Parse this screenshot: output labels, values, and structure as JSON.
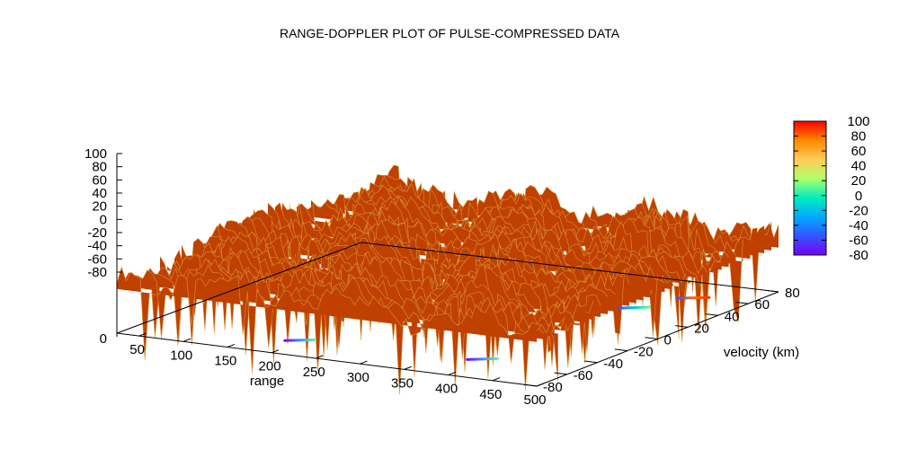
{
  "chart_data": {
    "type": "surface",
    "title": "RANGE-DOPPLER PLOT OF PULSE-COMPRESSED DATA",
    "xlabel": "range",
    "ylabel": "velocity (km)",
    "zlabel": "",
    "x_ticks": [
      "50",
      "100",
      "150",
      "200",
      "250",
      "300",
      "350",
      "400",
      "450",
      "500"
    ],
    "y_ticks": [
      "-80",
      "-60",
      "-40",
      "-20",
      "0",
      "20",
      "40",
      "60",
      "80"
    ],
    "z_ticks": [
      "100",
      "80",
      "60",
      "40",
      "20",
      "0",
      "-20",
      "-40",
      "-60",
      "-80"
    ],
    "z_axis_base_label": "0",
    "colorbar_ticks": [
      "100",
      "80",
      "60",
      "40",
      "20",
      "0",
      "-20",
      "-40",
      "-60",
      "-80"
    ],
    "colorbar_colors": [
      "#ff0000",
      "#ff8800",
      "#ffcc55",
      "#b0ff6a",
      "#00eebb",
      "#00aaff",
      "#3355ff",
      "#7700ff"
    ],
    "surface_color": "#c04000",
    "surface_highlight_color": "#d9a040",
    "xlim": [
      25,
      500
    ],
    "ylim": [
      -80,
      80
    ],
    "zlim": [
      -80,
      100
    ],
    "surface_baseline_level": 55,
    "targets": [
      {
        "range": 200,
        "velocity": -58,
        "level": 98
      },
      {
        "range": 395,
        "velocity": -52,
        "level": 100
      },
      {
        "range": 410,
        "velocity": 35,
        "level": 97
      },
      {
        "range": 440,
        "velocity": 58,
        "level": 96
      }
    ],
    "base_projection": [
      {
        "range_start": 184,
        "range_end": 208,
        "velocity": -62,
        "colors": [
          "#7700ff",
          "#4488ff",
          "#55ff99"
        ]
      },
      {
        "range_start": 382,
        "range_end": 406,
        "velocity": -57,
        "colors": [
          "#7700ff",
          "#4488ff",
          "#55ff99"
        ]
      },
      {
        "range_start": 398,
        "range_end": 422,
        "velocity": 34,
        "colors": [
          "#3355ff",
          "#00ccdd",
          "#66ff88"
        ]
      },
      {
        "range_start": 426,
        "range_end": 452,
        "velocity": 56,
        "colors": [
          "#3355ff",
          "#ff6600",
          "#ff3300"
        ]
      }
    ]
  }
}
